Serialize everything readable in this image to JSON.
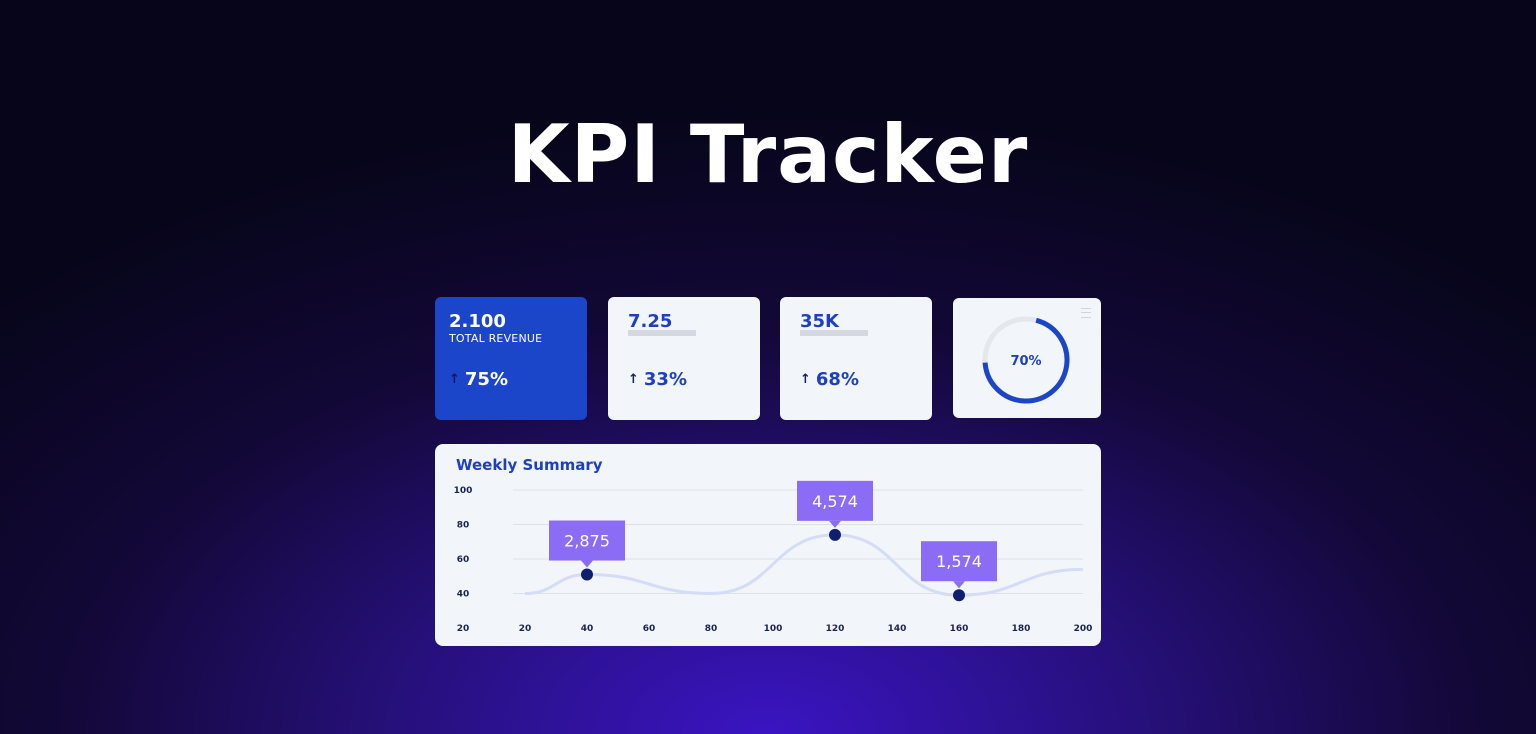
{
  "page": {
    "title": "KPI Tracker"
  },
  "kpis": [
    {
      "value": "2.100",
      "label": "TOTAL REVENUE",
      "delta": "75%",
      "arrow": "↑"
    },
    {
      "value": "7.25",
      "delta": "33%",
      "arrow": "↑"
    },
    {
      "value": "35K",
      "delta": "68%",
      "arrow": "↑"
    }
  ],
  "gauge": {
    "label": "70%",
    "value": 0.7,
    "track_color": "#e4e7ee",
    "fill_color": "#1c46c9"
  },
  "colors": {
    "accent": "#1c46c9",
    "callout": "#8b6cf5",
    "point": "#0f1e6e",
    "line": "#d4dcf6",
    "grid": "#dde1e8"
  },
  "chart_data": {
    "type": "line",
    "title": "Weekly Summary",
    "xlabel": "",
    "ylabel": "",
    "x_ticks": [
      20,
      40,
      60,
      80,
      100,
      120,
      140,
      160,
      180,
      200
    ],
    "y_ticks": [
      20,
      40,
      60,
      80,
      100
    ],
    "xlim": [
      20,
      200
    ],
    "ylim": [
      20,
      100
    ],
    "grid": true,
    "series": [
      {
        "x": [
          20,
          40,
          80,
          120,
          160,
          200
        ],
        "y": [
          40,
          51,
          40,
          74,
          39,
          54
        ]
      }
    ],
    "annotations": [
      {
        "x": 40,
        "y": 51,
        "label": "2,875"
      },
      {
        "x": 120,
        "y": 74,
        "label": "4,574"
      },
      {
        "x": 160,
        "y": 39,
        "label": "1,574"
      }
    ]
  }
}
